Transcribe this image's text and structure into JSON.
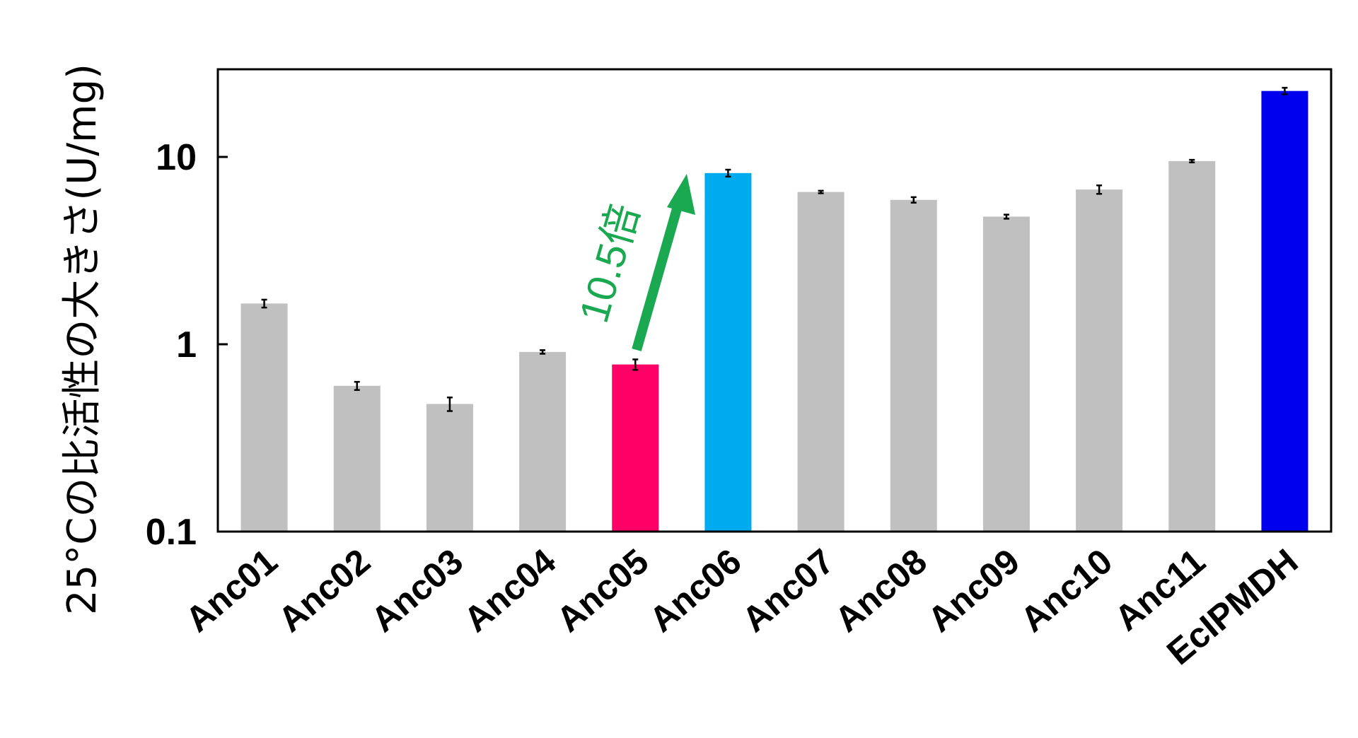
{
  "chart_data": {
    "type": "bar",
    "title": "",
    "xlabel": "",
    "ylabel": "25°Cの比活性の大きさ(U/mg)",
    "yscale": "log",
    "ylim": [
      0.1,
      30
    ],
    "yticks": [
      0.1,
      1,
      10
    ],
    "ytick_labels": [
      "0.1",
      "1",
      "10"
    ],
    "grid": false,
    "legend": "none",
    "categories": [
      "Anc01",
      "Anc02",
      "Anc03",
      "Anc04",
      "Anc05",
      "Anc06",
      "Anc07",
      "Anc08",
      "Anc09",
      "Anc10",
      "Anc11",
      "EcIPMDH"
    ],
    "values": [
      1.65,
      0.6,
      0.48,
      0.91,
      0.78,
      8.2,
      6.5,
      5.9,
      4.8,
      6.7,
      9.5,
      22.5
    ],
    "errors": [
      0.08,
      0.03,
      0.04,
      0.02,
      0.05,
      0.35,
      0.1,
      0.2,
      0.12,
      0.35,
      0.15,
      0.9
    ],
    "colors": [
      "#c0c0c0",
      "#c0c0c0",
      "#c0c0c0",
      "#c0c0c0",
      "#ff0066",
      "#00aaee",
      "#c0c0c0",
      "#c0c0c0",
      "#c0c0c0",
      "#c0c0c0",
      "#c0c0c0",
      "#0000ee"
    ],
    "annotation": {
      "text": "10.5倍",
      "color": "#1aa850",
      "from_category": "Anc05",
      "to_category": "Anc06"
    }
  }
}
